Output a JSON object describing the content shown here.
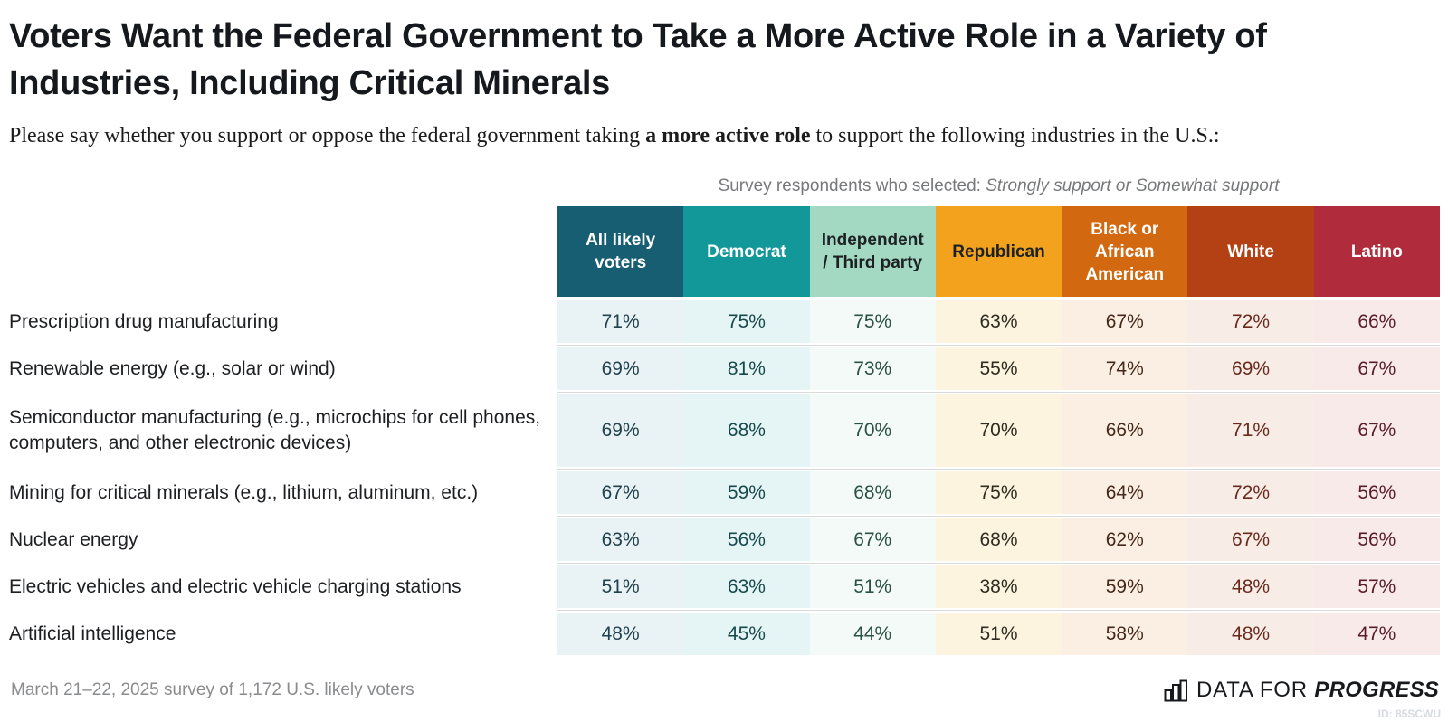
{
  "title": "Voters Want the Federal Government to Take a More Active Role in a Variety of Industries, Including Critical Minerals",
  "subtitle": {
    "prefix": "Please say whether you support or oppose the federal government taking ",
    "bold": "a more active role",
    "suffix": " to support the following industries in the U.S.:"
  },
  "table_note": {
    "prefix": "Survey respondents who selected: ",
    "italic": "Strongly support or Somewhat support"
  },
  "columns": [
    {
      "label": "All likely voters",
      "header_bg": "#175e73",
      "header_fg": "#ffffff",
      "cell_bg": "#e9f2f4",
      "cell_fg": "#22424e"
    },
    {
      "label": "Democrat",
      "header_bg": "#13989a",
      "header_fg": "#ffffff",
      "cell_bg": "#e5f4f4",
      "cell_fg": "#17494b"
    },
    {
      "label": "Independent / Third party",
      "header_bg": "#a3d9c2",
      "header_fg": "#1d2124",
      "cell_bg": "#f4faf7",
      "cell_fg": "#2a5244"
    },
    {
      "label": "Republican",
      "header_bg": "#f2a21c",
      "header_fg": "#1d2124",
      "cell_bg": "#fcf4df",
      "cell_fg": "#2f2c21"
    },
    {
      "label": "Black or African American",
      "header_bg": "#d26910",
      "header_fg": "#ffffff",
      "cell_bg": "#fbefe3",
      "cell_fg": "#45281a"
    },
    {
      "label": "White",
      "header_bg": "#b44113",
      "header_fg": "#ffffff",
      "cell_bg": "#f8ece7",
      "cell_fg": "#692a1c"
    },
    {
      "label": "Latino",
      "header_bg": "#b02b3b",
      "header_fg": "#ffffff",
      "cell_bg": "#f8eae9",
      "cell_fg": "#591d28"
    }
  ],
  "rows": [
    {
      "label": "Prescription drug manufacturing",
      "values": [
        "71%",
        "75%",
        "75%",
        "63%",
        "67%",
        "72%",
        "66%"
      ],
      "tall": false
    },
    {
      "label": "Renewable energy (e.g., solar or wind)",
      "values": [
        "69%",
        "81%",
        "73%",
        "55%",
        "74%",
        "69%",
        "67%"
      ],
      "tall": false
    },
    {
      "label": "Semiconductor manufacturing (e.g., microchips for cell phones, computers, and other electronic devices)",
      "values": [
        "69%",
        "68%",
        "70%",
        "70%",
        "66%",
        "71%",
        "67%"
      ],
      "tall": true
    },
    {
      "label": "Mining for critical minerals (e.g., lithium, aluminum, etc.)",
      "values": [
        "67%",
        "59%",
        "68%",
        "75%",
        "64%",
        "72%",
        "56%"
      ],
      "tall": false
    },
    {
      "label": "Nuclear energy",
      "values": [
        "63%",
        "56%",
        "67%",
        "68%",
        "62%",
        "67%",
        "56%"
      ],
      "tall": false
    },
    {
      "label": "Electric vehicles and electric vehicle charging stations",
      "values": [
        "51%",
        "63%",
        "51%",
        "38%",
        "59%",
        "48%",
        "57%"
      ],
      "tall": false
    },
    {
      "label": "Artificial intelligence",
      "values": [
        "48%",
        "45%",
        "44%",
        "51%",
        "58%",
        "48%",
        "47%"
      ],
      "tall": false
    }
  ],
  "footer": {
    "source": "March 21–22, 2025 survey of 1,172 U.S. likely voters",
    "brand_prefix": "DATA FOR",
    "brand_bold": "PROGRESS",
    "watermark": "ID: 85SCWU"
  },
  "chart_data": {
    "type": "table",
    "title": "Voters Want the Federal Government to Take a More Active Role in a Variety of Industries, Including Critical Minerals",
    "subtitle": "Please say whether you support or oppose the federal government taking a more active role to support the following industries in the U.S.:",
    "note": "Survey respondents who selected: Strongly support or Somewhat support",
    "unit": "%",
    "categories": [
      "Prescription drug manufacturing",
      "Renewable energy (e.g., solar or wind)",
      "Semiconductor manufacturing (e.g., microchips for cell phones, computers, and other electronic devices)",
      "Mining for critical minerals (e.g., lithium, aluminum, etc.)",
      "Nuclear energy",
      "Electric vehicles and electric vehicle charging stations",
      "Artificial intelligence"
    ],
    "series": [
      {
        "name": "All likely voters",
        "values": [
          71,
          69,
          69,
          67,
          63,
          51,
          48
        ]
      },
      {
        "name": "Democrat",
        "values": [
          75,
          81,
          68,
          59,
          56,
          63,
          45
        ]
      },
      {
        "name": "Independent / Third party",
        "values": [
          75,
          73,
          70,
          68,
          67,
          51,
          44
        ]
      },
      {
        "name": "Republican",
        "values": [
          63,
          55,
          70,
          75,
          68,
          38,
          51
        ]
      },
      {
        "name": "Black or African American",
        "values": [
          67,
          74,
          66,
          64,
          62,
          59,
          58
        ]
      },
      {
        "name": "White",
        "values": [
          72,
          69,
          71,
          72,
          67,
          48,
          48
        ]
      },
      {
        "name": "Latino",
        "values": [
          66,
          67,
          67,
          56,
          56,
          57,
          47
        ]
      }
    ],
    "source": "March 21–22, 2025 survey of 1,172 U.S. likely voters"
  }
}
